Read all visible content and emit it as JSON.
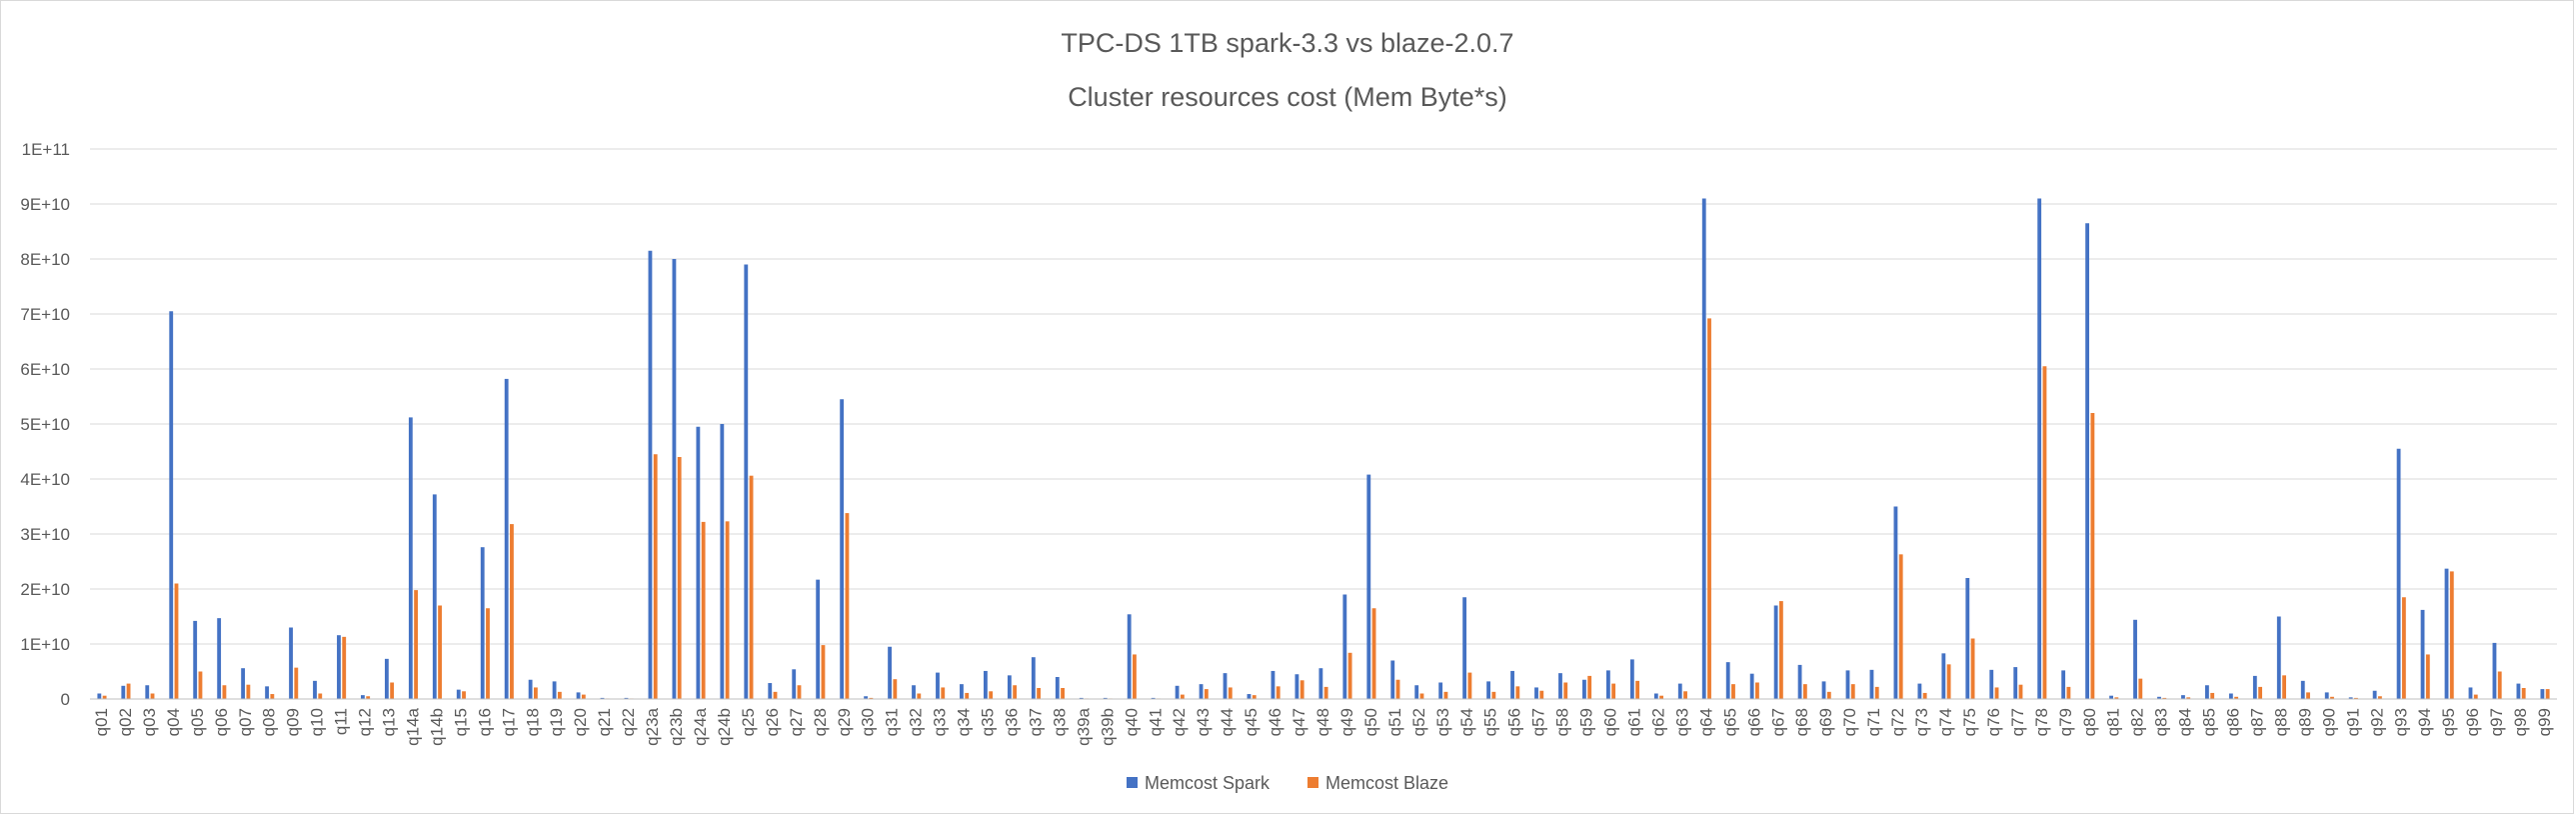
{
  "chart_data": {
    "type": "bar",
    "title": "TPC-DS 1TB spark-3.3 vs blaze-2.0.7",
    "subtitle": "Cluster resources cost (Mem Byte*s)",
    "xlabel": "",
    "ylabel": "",
    "ylim": [
      0,
      100000000000
    ],
    "yticks": [
      0,
      10000000000,
      20000000000,
      30000000000,
      40000000000,
      50000000000,
      60000000000,
      70000000000,
      80000000000,
      90000000000,
      100000000000
    ],
    "ytick_labels": [
      "0",
      "1E+10",
      "2E+10",
      "3E+10",
      "4E+10",
      "5E+10",
      "6E+10",
      "7E+10",
      "8E+10",
      "9E+10",
      "1E+11"
    ],
    "grid": true,
    "legend_position": "bottom-center",
    "categories": [
      "q01",
      "q02",
      "q03",
      "q04",
      "q05",
      "q06",
      "q07",
      "q08",
      "q09",
      "q10",
      "q11",
      "q12",
      "q13",
      "q14a",
      "q14b",
      "q15",
      "q16",
      "q17",
      "q18",
      "q19",
      "q20",
      "q21",
      "q22",
      "q23a",
      "q23b",
      "q24a",
      "q24b",
      "q25",
      "q26",
      "q27",
      "q28",
      "q29",
      "q30",
      "q31",
      "q32",
      "q33",
      "q34",
      "q35",
      "q36",
      "q37",
      "q38",
      "q39a",
      "q39b",
      "q40",
      "q41",
      "q42",
      "q43",
      "q44",
      "q45",
      "q46",
      "q47",
      "q48",
      "q49",
      "q50",
      "q51",
      "q52",
      "q53",
      "q54",
      "q55",
      "q56",
      "q57",
      "q58",
      "q59",
      "q60",
      "q61",
      "q62",
      "q63",
      "q64",
      "q65",
      "q66",
      "q67",
      "q68",
      "q69",
      "q70",
      "q71",
      "q72",
      "q73",
      "q74",
      "q75",
      "q76",
      "q77",
      "q78",
      "q79",
      "q80",
      "q81",
      "q82",
      "q83",
      "q84",
      "q85",
      "q86",
      "q87",
      "q88",
      "q89",
      "q90",
      "q91",
      "q92",
      "q93",
      "q94",
      "q95",
      "q96",
      "q97",
      "q98",
      "q99"
    ],
    "series": [
      {
        "name": "Memcost Spark",
        "color": "#4472C4",
        "values": [
          1000000000,
          2400000000,
          2500000000,
          70500000000,
          14200000000,
          14700000000,
          5600000000,
          2300000000,
          13000000000,
          3300000000,
          11600000000,
          700000000,
          7300000000,
          51200000000,
          37200000000,
          1700000000,
          27600000000,
          58200000000,
          3500000000,
          3200000000,
          1200000000,
          200000000,
          200000000,
          81500000000,
          80000000000,
          49500000000,
          50000000000,
          79000000000,
          2900000000,
          5400000000,
          21700000000,
          54500000000,
          500000000,
          9500000000,
          2500000000,
          4800000000,
          2700000000,
          5100000000,
          4300000000,
          7600000000,
          4000000000,
          200000000,
          200000000,
          15400000000,
          200000000,
          2400000000,
          2700000000,
          4700000000,
          900000000,
          5100000000,
          4500000000,
          5600000000,
          19000000000,
          40800000000,
          7000000000,
          2500000000,
          3000000000,
          18500000000,
          3200000000,
          5100000000,
          2100000000,
          4700000000,
          3500000000,
          5200000000,
          7200000000,
          1000000000,
          2800000000,
          91000000000,
          6700000000,
          4600000000,
          17000000000,
          6200000000,
          3200000000,
          5200000000,
          5300000000,
          35000000000,
          2800000000,
          8300000000,
          22000000000,
          5300000000,
          5800000000,
          91000000000,
          5200000000,
          86500000000,
          600000000,
          14400000000,
          400000000,
          700000000,
          2500000000,
          1000000000,
          4200000000,
          15000000000,
          3300000000,
          1200000000,
          300000000,
          1500000000,
          45500000000,
          16200000000,
          23700000000,
          2100000000,
          10200000000,
          2800000000,
          1800000000
        ]
      },
      {
        "name": "Memcost Blaze",
        "color": "#ED7D31",
        "values": [
          600000000,
          2800000000,
          1000000000,
          21000000000,
          5000000000,
          2500000000,
          2600000000,
          900000000,
          5700000000,
          1000000000,
          11300000000,
          500000000,
          3000000000,
          19800000000,
          17000000000,
          1400000000,
          16500000000,
          31800000000,
          2100000000,
          1300000000,
          800000000,
          100000000,
          100000000,
          44500000000,
          44000000000,
          32200000000,
          32300000000,
          40600000000,
          1300000000,
          2500000000,
          9800000000,
          33800000000,
          200000000,
          3600000000,
          1000000000,
          2100000000,
          1100000000,
          1400000000,
          2500000000,
          2000000000,
          2000000000,
          100000000,
          100000000,
          8100000000,
          100000000,
          800000000,
          1800000000,
          2100000000,
          700000000,
          2300000000,
          3400000000,
          2200000000,
          8400000000,
          16500000000,
          3500000000,
          1000000000,
          1300000000,
          4800000000,
          1300000000,
          2300000000,
          1500000000,
          3000000000,
          4200000000,
          2800000000,
          3300000000,
          600000000,
          1400000000,
          69200000000,
          2700000000,
          3000000000,
          17800000000,
          2700000000,
          1300000000,
          2700000000,
          2200000000,
          26300000000,
          1100000000,
          6300000000,
          11000000000,
          2100000000,
          2600000000,
          60500000000,
          2200000000,
          52000000000,
          300000000,
          3700000000,
          200000000,
          300000000,
          1100000000,
          400000000,
          2200000000,
          4300000000,
          1200000000,
          400000000,
          200000000,
          500000000,
          18500000000,
          8100000000,
          23200000000,
          800000000,
          5000000000,
          2000000000,
          1800000000
        ]
      }
    ]
  }
}
